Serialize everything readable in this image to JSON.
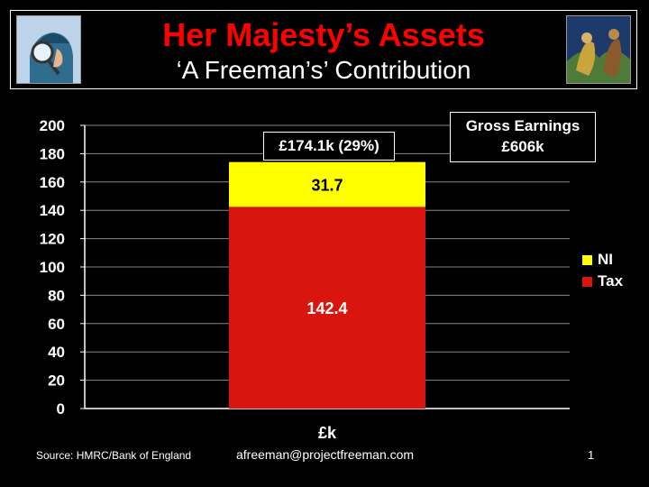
{
  "header": {
    "title": "Her Majesty’s Assets",
    "subtitle": "‘A Freeman’s’ Contribution"
  },
  "annotations": {
    "total": "£174.1k (29%)",
    "gross_line1": "Gross Earnings",
    "gross_line2": "£606k"
  },
  "colors": {
    "tax": "#d9150f",
    "ni": "#ffff00",
    "title": "#ff0000"
  },
  "chart_data": {
    "type": "bar",
    "stacked": true,
    "categories": [
      "£k"
    ],
    "series": [
      {
        "name": "Tax",
        "values": [
          142.4
        ],
        "color": "#d9150f"
      },
      {
        "name": "NI",
        "values": [
          31.7
        ],
        "color": "#ffff00"
      }
    ],
    "y_ticks": [
      "0",
      "20",
      "40",
      "60",
      "80",
      "100",
      "120",
      "140",
      "160",
      "180",
      "200"
    ],
    "ylim": [
      0,
      200
    ],
    "grid": true,
    "legend": "right",
    "xlabel": "",
    "ylabel": ""
  },
  "legend": [
    {
      "label": "NI",
      "color": "#ffff00"
    },
    {
      "label": "Tax",
      "color": "#d9150f"
    }
  ],
  "footer": {
    "source": "Source: HMRC/Bank of England",
    "email": "afreeman@projectfreeman.com",
    "page": "1"
  }
}
